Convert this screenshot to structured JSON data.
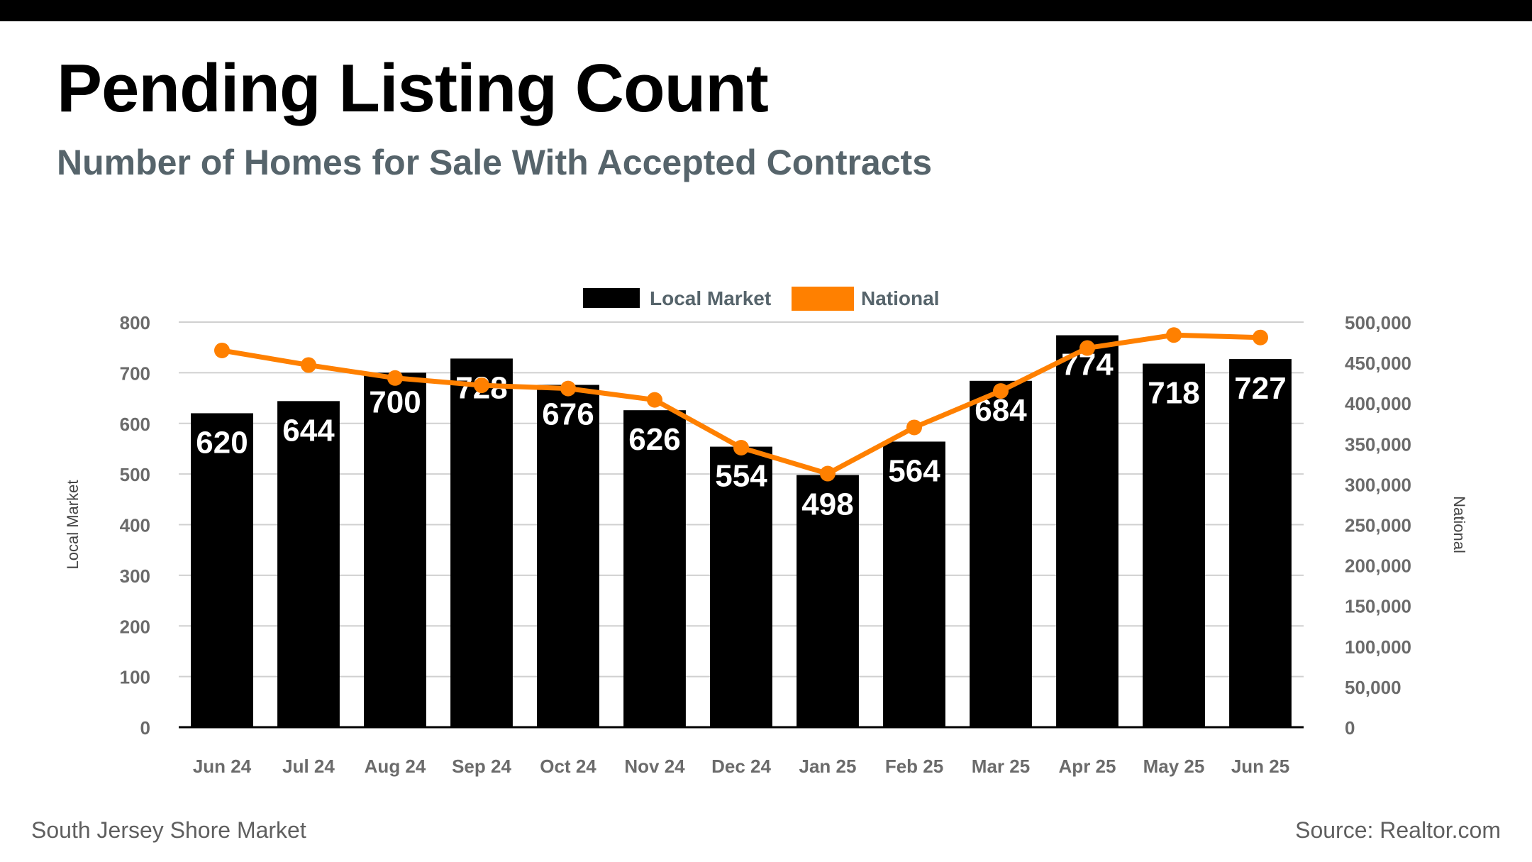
{
  "page": {
    "title": "Pending Listing Count",
    "subtitle": "Number of Homes for Sale With Accepted Contracts",
    "footer_left": "South Jersey Shore Market",
    "footer_right": "Source: Realtor.com"
  },
  "colors": {
    "local": "#000000",
    "national": "#ff8000",
    "grid": "#d0d0d0",
    "axis_text": "#6b6b6b",
    "bar_label": "#ffffff"
  },
  "chart_data": {
    "type": "bar",
    "categories": [
      "Jun 24",
      "Jul 24",
      "Aug 24",
      "Sep 24",
      "Oct 24",
      "Nov 24",
      "Dec 24",
      "Jan 25",
      "Feb 25",
      "Mar 25",
      "Apr 25",
      "May 25",
      "Jun 25"
    ],
    "series": [
      {
        "name": "Local Market",
        "type": "bar",
        "axis": "left",
        "values": [
          620,
          644,
          700,
          728,
          676,
          626,
          554,
          498,
          564,
          684,
          774,
          718,
          727
        ],
        "data_labels": [
          "620",
          "644",
          "700",
          "728",
          "676",
          "626",
          "554",
          "498",
          "564",
          "684",
          "774",
          "718",
          "727"
        ]
      },
      {
        "name": "National",
        "type": "line",
        "axis": "right",
        "values": [
          465000,
          447000,
          431000,
          422000,
          418000,
          404000,
          345000,
          313000,
          370000,
          415000,
          468000,
          484000,
          481000
        ]
      }
    ],
    "ylabel_left": "Local Market",
    "ylabel_right": "National",
    "ylim_left": [
      0,
      800
    ],
    "ylim_right": [
      0,
      500000
    ],
    "yticks_left": [
      "0",
      "100",
      "200",
      "300",
      "400",
      "500",
      "600",
      "700",
      "800"
    ],
    "yticks_right": [
      "0",
      "50,000",
      "100,000",
      "150,000",
      "200,000",
      "250,000",
      "300,000",
      "350,000",
      "400,000",
      "450,000",
      "500,000"
    ],
    "grid": true,
    "legend": "top-center"
  }
}
